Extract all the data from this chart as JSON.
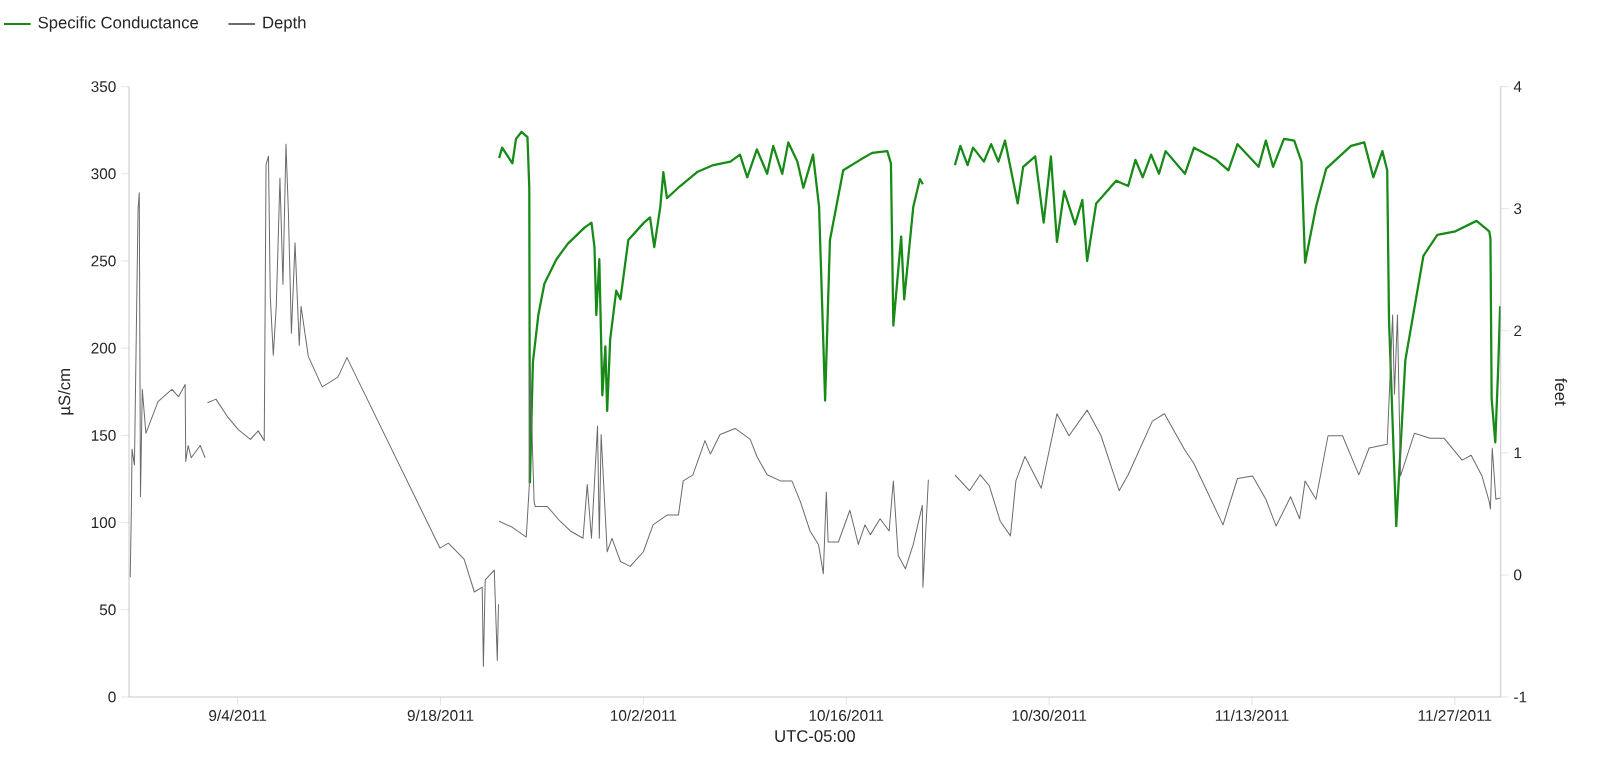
{
  "chart_data": {
    "type": "line",
    "xlabel": "UTC-05:00",
    "ylabel": "µS/cm",
    "y2label": "feet",
    "legend": "top left",
    "xlim": [
      "2011-08-27T12:00",
      "2011-11-30T04:00"
    ],
    "xticks": [
      {
        "value": "2011-09-04",
        "label": "9/4/2011"
      },
      {
        "value": "2011-09-18",
        "label": "9/18/2011"
      },
      {
        "value": "2011-10-02",
        "label": "10/2/2011"
      },
      {
        "value": "2011-10-16",
        "label": "10/16/2011"
      },
      {
        "value": "2011-10-30",
        "label": "10/30/2011"
      },
      {
        "value": "2011-11-13",
        "label": "11/13/2011"
      },
      {
        "value": "2011-11-27",
        "label": "11/27/2011"
      }
    ],
    "ylim": [
      0,
      350
    ],
    "yticks": [
      0,
      50,
      100,
      150,
      200,
      250,
      300,
      350
    ],
    "y2lim": [
      -1,
      4
    ],
    "y2ticks": [
      -1,
      0,
      1,
      2,
      3,
      4
    ],
    "series": [
      {
        "name": "Specific Conductance",
        "color": "#178a17",
        "x": [
          "2011-09-22T01:00",
          "2011-09-22T06:00",
          "2011-09-22T23:00",
          "2011-09-23T05:00",
          "2011-09-23T14:00",
          "2011-09-24T00:00",
          "2011-09-24T03:00",
          "2011-09-24T04:00",
          "2011-09-24T09:00",
          "2011-09-24T18:00",
          "2011-09-25T04:00",
          "2011-09-26T00:00",
          "2011-09-26T19:00",
          "2011-09-27T22:00",
          "2011-09-28T10:00",
          "2011-09-28T15:00",
          "2011-09-28T18:00",
          "2011-09-28T23:00",
          "2011-09-29T04:00",
          "2011-09-29T09:00",
          "2011-09-29T12:00",
          "2011-09-29T17:00",
          "2011-09-30T03:00",
          "2011-09-30T10:00",
          "2011-09-30T23:00",
          "2011-10-02T01:00",
          "2011-10-02T11:00",
          "2011-10-02T18:00",
          "2011-10-03T04:00",
          "2011-10-03T09:00",
          "2011-10-03T15:00",
          "2011-10-04T13:00",
          "2011-10-05T17:00",
          "2011-10-06T20:00",
          "2011-10-08T00:00",
          "2011-10-08T16:00",
          "2011-10-09T04:00",
          "2011-10-09T20:00",
          "2011-10-10T13:00",
          "2011-10-10T23:00",
          "2011-10-11T14:00",
          "2011-10-12T00:00",
          "2011-10-12T15:00",
          "2011-10-13T01:00",
          "2011-10-13T17:00",
          "2011-10-14T03:00",
          "2011-10-14T13:00",
          "2011-10-14T21:00",
          "2011-10-15T19:00",
          "2011-10-16T23:00",
          "2011-10-17T19:00",
          "2011-10-18T20:00",
          "2011-10-19T02:00",
          "2011-10-19T06:00",
          "2011-10-19T19:00",
          "2011-10-20T00:00",
          "2011-10-20T15:00",
          "2011-10-21T02:00",
          "2011-10-21T07:00",
          "2011-10-22T00:00",
          "2011-10-23T12:00",
          "2011-10-23T21:00",
          "2011-10-24T09:00",
          "2011-10-24T18:00",
          "2011-10-25T12:00",
          "2011-10-26T00:00",
          "2011-10-26T12:00",
          "2011-10-26T23:00",
          "2011-10-27T20:00",
          "2011-10-28T05:00",
          "2011-10-29T01:00",
          "2011-10-29T15:00",
          "2011-10-30T03:00",
          "2011-10-30T13:00",
          "2011-10-31T01:00",
          "2011-10-31T19:00",
          "2011-11-01T07:00",
          "2011-11-01T15:00",
          "2011-11-02T06:00",
          "2011-11-03T15:00",
          "2011-11-04T11:00",
          "2011-11-04T23:00",
          "2011-11-05T11:00",
          "2011-11-06T01:00",
          "2011-11-06T14:00",
          "2011-11-07T01:00",
          "2011-11-08T09:00",
          "2011-11-09T00:00",
          "2011-11-10T13:00",
          "2011-11-11T09:00",
          "2011-11-12T00:00",
          "2011-11-13T11:00",
          "2011-11-13T23:00",
          "2011-11-14T11:00",
          "2011-11-15T05:00",
          "2011-11-15T22:00",
          "2011-11-16T10:00",
          "2011-11-16T16:00",
          "2011-11-17T10:00",
          "2011-11-18T03:00",
          "2011-11-19T20:00",
          "2011-11-20T18:00",
          "2011-11-21T09:00",
          "2011-11-22T00:00",
          "2011-11-22T08:00",
          "2011-11-22T11:00",
          "2011-11-22T23:00",
          "2011-11-23T14:00",
          "2011-11-24T20:00",
          "2011-11-25T19:00",
          "2011-11-27T01:00",
          "2011-11-28T12:00",
          "2011-11-29T09:00",
          "2011-11-29T11:00",
          "2011-11-29T13:00",
          "2011-11-29T19:00",
          "2011-11-30T00:00",
          "2011-11-30T03:00"
        ],
        "values": [
          309,
          315,
          306,
          320,
          324,
          321,
          292,
          123,
          192,
          219,
          237,
          251,
          260,
          269,
          272,
          258,
          219,
          251,
          173,
          201,
          164,
          205,
          233,
          228,
          262,
          272,
          275,
          258,
          281,
          301,
          286,
          293,
          301,
          305,
          307,
          311,
          298,
          314,
          300,
          316,
          300,
          318,
          307,
          292,
          311,
          281,
          170,
          262,
          302,
          308,
          312,
          313,
          306,
          213,
          264,
          228,
          281,
          297,
          294,
          null,
          305,
          316,
          305,
          315,
          307,
          317,
          307,
          319,
          283,
          304,
          310,
          272,
          310,
          261,
          290,
          271,
          285,
          250,
          283,
          296,
          293,
          308,
          298,
          311,
          300,
          313,
          300,
          315,
          308,
          302,
          317,
          304,
          319,
          304,
          320,
          319,
          307,
          249,
          281,
          303,
          316,
          318,
          298,
          313,
          302,
          216,
          98,
          193,
          253,
          265,
          267,
          273,
          267,
          263,
          171,
          146,
          190,
          224
        ]
      },
      {
        "name": "Depth",
        "color": "#6b6b6b",
        "axis": "y2",
        "x": [
          "2011-08-27T14:00",
          "2011-08-27T16:00",
          "2011-08-27T17:00",
          "2011-08-27T21:00",
          "2011-08-28T03:00",
          "2011-08-28T05:00",
          "2011-08-28T07:00",
          "2011-08-28T10:00",
          "2011-08-28T16:00",
          "2011-08-29T12:00",
          "2011-08-30T11:00",
          "2011-08-30T22:00",
          "2011-08-31T09:00",
          "2011-08-31T10:00",
          "2011-08-31T14:00",
          "2011-08-31T19:00",
          "2011-09-01T10:00",
          "2011-09-01T18:00",
          "2011-09-01T20:00",
          "2011-09-01T22:00",
          "2011-09-02T12:00",
          "2011-09-03T08:00",
          "2011-09-04T01:00",
          "2011-09-04T21:00",
          "2011-09-05T10:00",
          "2011-09-05T20:00",
          "2011-09-05T23:00",
          "2011-09-06T03:00",
          "2011-09-06T06:00",
          "2011-09-06T11:00",
          "2011-09-06T16:00",
          "2011-09-06T22:00",
          "2011-09-07T03:00",
          "2011-09-07T08:00",
          "2011-09-07T12:00",
          "2011-09-07T17:00",
          "2011-09-07T23:00",
          "2011-09-08T06:00",
          "2011-09-08T09:00",
          "2011-09-08T21:00",
          "2011-09-09T20:00",
          "2011-09-10T22:00",
          "2011-09-11T13:00",
          "2011-09-17T23:00",
          "2011-09-18T13:00",
          "2011-09-19T15:00",
          "2011-09-20T08:00",
          "2011-09-20T21:00",
          "2011-09-20T23:00",
          "2011-09-21T02:00",
          "2011-09-21T17:00",
          "2011-09-21T22:00",
          "2011-09-22T00:00",
          "2011-09-22T00:30",
          "2011-09-22T01:00",
          "2011-09-22T23:00",
          "2011-09-23T22:00",
          "2011-09-24T03:00",
          "2011-09-24T04:00",
          "2011-09-24T11:00",
          "2011-09-24T13:00",
          "2011-09-25T09:00",
          "2011-09-26T06:00",
          "2011-09-26T23:00",
          "2011-09-27T20:00",
          "2011-09-28T03:00",
          "2011-09-28T10:00",
          "2011-09-28T20:00",
          "2011-09-28T23:00",
          "2011-09-29T02:00",
          "2011-09-29T12:00",
          "2011-09-29T20:00",
          "2011-09-30T10:00",
          "2011-10-01T02:00",
          "2011-10-02T00:00",
          "2011-10-02T16:00",
          "2011-10-03T15:00",
          "2011-10-04T10:00",
          "2011-10-04T18:00",
          "2011-10-05T10:00",
          "2011-10-06T06:00",
          "2011-10-06T15:00",
          "2011-10-07T07:00",
          "2011-10-08T08:00",
          "2011-10-09T09:00",
          "2011-10-09T20:00",
          "2011-10-10T13:00",
          "2011-10-11T11:00",
          "2011-10-12T06:00",
          "2011-10-12T20:00",
          "2011-10-13T12:00",
          "2011-10-14T02:00",
          "2011-10-14T10:00",
          "2011-10-14T15:00",
          "2011-10-14T18:00",
          "2011-10-15T11:00",
          "2011-10-16T06:00",
          "2011-10-16T20:00",
          "2011-10-17T07:00",
          "2011-10-17T16:00",
          "2011-10-18T08:00",
          "2011-10-18T23:00",
          "2011-10-19T06:00",
          "2011-10-19T14:00",
          "2011-10-20T02:00",
          "2011-10-20T15:00",
          "2011-10-21T06:00",
          "2011-10-21T07:00",
          "2011-10-21T16:00",
          "2011-10-22T00:00",
          "2011-10-23T12:00",
          "2011-10-24T12:00",
          "2011-10-25T06:00",
          "2011-10-25T21:00",
          "2011-10-26T15:00",
          "2011-10-27T08:00",
          "2011-10-27T17:00",
          "2011-10-28T08:00",
          "2011-10-29T11:00",
          "2011-10-30T13:00",
          "2011-10-31T09:00",
          "2011-11-01T15:00",
          "2011-11-02T14:00",
          "2011-11-03T20:00",
          "2011-11-04T11:00",
          "2011-11-06T03:00",
          "2011-11-06T23:00",
          "2011-11-08T08:00",
          "2011-11-09T00:00",
          "2011-11-11T00:00",
          "2011-11-12T00:00",
          "2011-11-13T01:00",
          "2011-11-13T23:00",
          "2011-11-14T16:00",
          "2011-11-15T16:00",
          "2011-11-16T07:00",
          "2011-11-16T16:00",
          "2011-11-17T10:00",
          "2011-11-18T06:00",
          "2011-11-19T06:00",
          "2011-11-20T09:00",
          "2011-11-21T02:00",
          "2011-11-22T08:00",
          "2011-11-22T17:00",
          "2011-11-22T20:00",
          "2011-11-23T01:00",
          "2011-11-23T06:00",
          "2011-11-24T05:00",
          "2011-11-25T07:00",
          "2011-11-26T06:00",
          "2011-11-27T12:00",
          "2011-11-28T03:00",
          "2011-11-28T21:00",
          "2011-11-29T09:00",
          "2011-11-29T11:00",
          "2011-11-29T14:00",
          "2011-11-29T20:00",
          "2011-11-30T03:00"
        ],
        "values": [
          -0.02,
          0.57,
          1.03,
          0.9,
          3.0,
          3.13,
          0.64,
          1.52,
          1.16,
          1.42,
          1.52,
          1.46,
          1.56,
          0.93,
          1.06,
          0.96,
          1.06,
          0.96,
          null,
          1.41,
          1.44,
          1.29,
          1.19,
          1.11,
          1.18,
          1.1,
          3.36,
          3.43,
          2.28,
          1.8,
          2.21,
          3.25,
          2.38,
          3.53,
          2.97,
          1.98,
          2.72,
          1.88,
          2.2,
          1.79,
          1.54,
          1.62,
          1.78,
          0.22,
          0.26,
          0.13,
          -0.14,
          -0.1,
          -0.75,
          -0.04,
          0.04,
          -0.7,
          -0.24,
          null,
          0.44,
          0.39,
          0.31,
          0.73,
          1.72,
          0.6,
          0.56,
          0.56,
          0.44,
          0.36,
          0.3,
          0.74,
          0.3,
          1.22,
          0.3,
          1.15,
          0.19,
          0.3,
          0.11,
          0.07,
          0.19,
          0.41,
          0.49,
          0.49,
          0.77,
          0.82,
          1.1,
          0.99,
          1.15,
          1.2,
          1.11,
          0.97,
          0.82,
          0.77,
          0.77,
          0.6,
          0.36,
          0.25,
          0.01,
          0.68,
          0.27,
          0.27,
          0.53,
          0.25,
          0.41,
          0.33,
          0.46,
          0.36,
          0.77,
          0.16,
          0.05,
          0.25,
          0.57,
          -0.1,
          0.78,
          null,
          0.82,
          0.69,
          0.82,
          0.73,
          0.44,
          0.32,
          0.77,
          0.97,
          0.71,
          1.32,
          1.14,
          1.35,
          1.14,
          0.69,
          0.82,
          1.26,
          1.32,
          1.03,
          0.91,
          0.41,
          0.79,
          0.81,
          0.62,
          0.4,
          0.64,
          0.46,
          0.77,
          0.62,
          1.14,
          1.14,
          0.82,
          1.04,
          1.07,
          2.13,
          1.48,
          2.13,
          0.81,
          1.16,
          1.12,
          1.12,
          0.94,
          0.98,
          0.81,
          0.6,
          0.54,
          1.04,
          0.62,
          0.63
        ]
      }
    ]
  }
}
